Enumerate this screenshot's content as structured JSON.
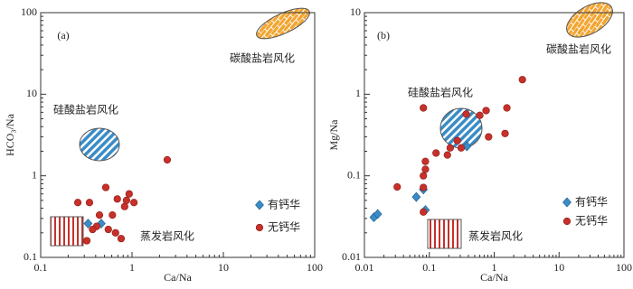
{
  "chart_data": [
    {
      "type": "scatter",
      "label": "(a)",
      "x_label": "Ca/Na",
      "y_label": "HCO₃/Na",
      "annotations": [
        "碳酸盐岩风化",
        "硅酸盐岩风化",
        "蒸发岩风化"
      ],
      "log_x": true,
      "log_y": true,
      "xlim": [
        0.1,
        100
      ],
      "ylim": [
        0.1,
        100
      ],
      "xticks": [
        0.1,
        1,
        10,
        100
      ],
      "yticks": [
        0.1,
        1,
        10,
        100
      ],
      "series": [
        {
          "name": "有钙华",
          "color": "#3a8cc6",
          "marker": "diamond",
          "x": [
            0.33,
            0.46
          ],
          "values": [
            0.26,
            0.26
          ]
        },
        {
          "name": "无钙华",
          "color": "#c8302a",
          "marker": "circle",
          "x": [
            2.43,
            0.255,
            0.342,
            0.516,
            0.69,
            0.87,
            0.93,
            1.05,
            0.83,
            0.44,
            0.61,
            0.41,
            0.55,
            0.66,
            0.76,
            0.32,
            0.37
          ],
          "values": [
            1.57,
            0.47,
            0.47,
            0.72,
            0.52,
            0.5,
            0.6,
            0.47,
            0.42,
            0.33,
            0.33,
            0.24,
            0.22,
            0.2,
            0.17,
            0.16,
            0.22
          ]
        }
      ]
    },
    {
      "type": "scatter",
      "label": "(b)",
      "x_label": "Ca/Na",
      "y_label": "Mg/Na",
      "annotations": [
        "碳酸盐岩风化",
        "硅酸盐岩风化",
        "蒸发岩风化"
      ],
      "log_x": true,
      "log_y": true,
      "xlim": [
        0.01,
        100
      ],
      "ylim": [
        0.01,
        10
      ],
      "xticks": [
        0.01,
        0.1,
        1,
        10,
        100
      ],
      "yticks": [
        0.01,
        0.1,
        1,
        10
      ],
      "series": [
        {
          "name": "有钙华",
          "color": "#3a8cc6",
          "marker": "diamond",
          "x": [
            0.014,
            0.016,
            0.063,
            0.081,
            0.087,
            0.38
          ],
          "values": [
            0.031,
            0.034,
            0.055,
            0.068,
            0.038,
            0.23
          ]
        },
        {
          "name": "无钙华",
          "color": "#c8302a",
          "marker": "circle",
          "x": [
            2.72,
            0.081,
            1.57,
            0.75,
            0.37,
            0.6,
            1.47,
            0.82,
            0.27,
            0.21,
            0.19,
            0.087,
            0.087,
            0.127,
            0.081,
            0.081,
            0.032,
            0.081,
            0.31
          ],
          "values": [
            1.51,
            0.68,
            0.68,
            0.63,
            0.57,
            0.55,
            0.33,
            0.3,
            0.27,
            0.22,
            0.18,
            0.15,
            0.12,
            0.19,
            0.1,
            0.072,
            0.073,
            0.036,
            0.22
          ]
        }
      ]
    }
  ]
}
